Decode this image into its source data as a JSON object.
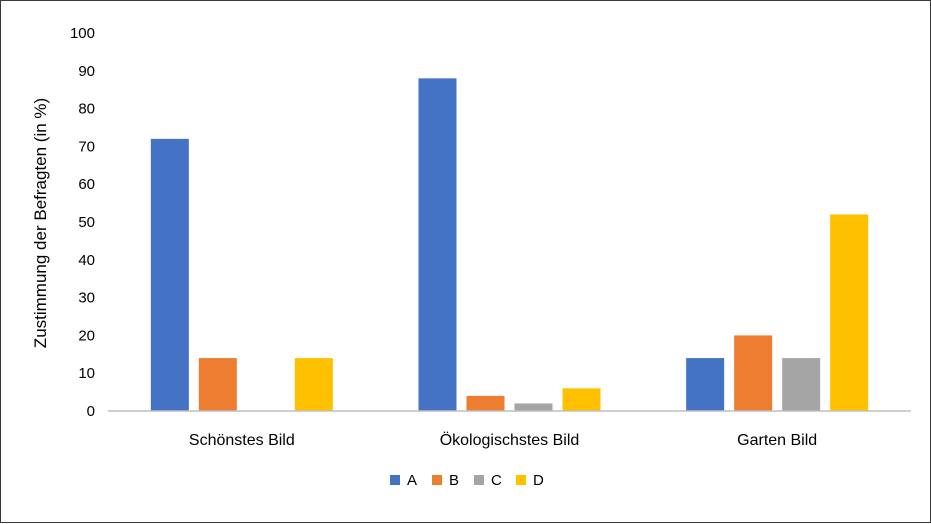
{
  "chart_data": {
    "type": "bar",
    "categories": [
      "Schönstes Bild",
      "Ökologischstes Bild",
      "Garten Bild"
    ],
    "series": [
      {
        "name": "A",
        "values": [
          72,
          88,
          14
        ],
        "color": "#4472C4"
      },
      {
        "name": "B",
        "values": [
          14,
          4,
          20
        ],
        "color": "#ED7D31"
      },
      {
        "name": "C",
        "values": [
          0,
          2,
          14
        ],
        "color": "#A5A5A5"
      },
      {
        "name": "D",
        "values": [
          14,
          6,
          52
        ],
        "color": "#FFC000"
      }
    ],
    "title": "",
    "xlabel": "",
    "ylabel": "Zustimmung der Befragten (in %)",
    "ylim": [
      0,
      100
    ],
    "yticks": [
      0,
      10,
      20,
      30,
      40,
      50,
      60,
      70,
      80,
      90,
      100
    ],
    "grid": false,
    "legend_position": "bottom"
  }
}
